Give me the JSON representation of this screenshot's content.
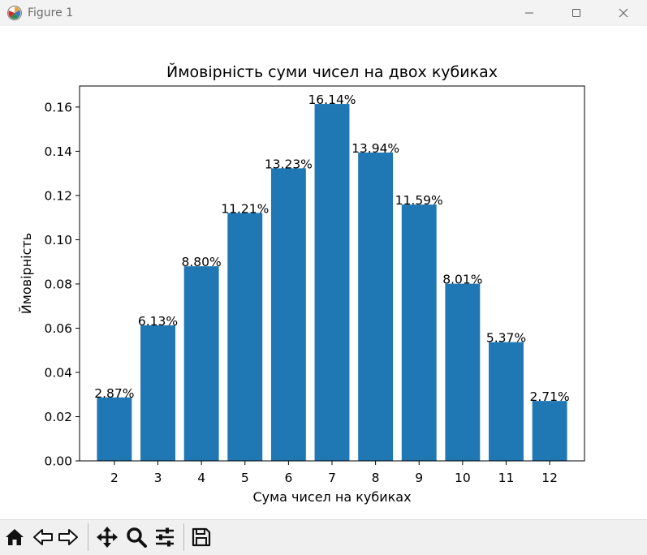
{
  "window": {
    "title": "Figure 1",
    "controls": [
      "minimize",
      "maximize",
      "close"
    ]
  },
  "toolbar": {
    "tools": [
      {
        "id": "home",
        "icon": "home-icon"
      },
      {
        "id": "back",
        "icon": "back-arrow-icon"
      },
      {
        "id": "forward",
        "icon": "forward-arrow-icon"
      },
      {
        "id": "pan",
        "icon": "move-icon"
      },
      {
        "id": "zoom",
        "icon": "zoom-icon"
      },
      {
        "id": "configure",
        "icon": "sliders-icon"
      },
      {
        "id": "save",
        "icon": "save-icon"
      }
    ]
  },
  "colors": {
    "bar": "#1f77b4",
    "titlebar": "#f3f3f3",
    "toolbar": "#f0f0f0"
  },
  "chart_data": {
    "type": "bar",
    "title": "Ймовірність суми чисел на двох кубиках",
    "xlabel": "Сума чисел на кубиках",
    "ylabel": "Ймовірність",
    "categories": [
      "2",
      "3",
      "4",
      "5",
      "6",
      "7",
      "8",
      "9",
      "10",
      "11",
      "12"
    ],
    "values": [
      0.0287,
      0.0613,
      0.088,
      0.1121,
      0.1323,
      0.1614,
      0.1394,
      0.1159,
      0.0801,
      0.0537,
      0.0271
    ],
    "data_labels": [
      "2.87%",
      "6.13%",
      "8.80%",
      "11.21%",
      "13.23%",
      "16.14%",
      "13.94%",
      "11.59%",
      "8.01%",
      "5.37%",
      "2.71%"
    ],
    "yticks": [
      0,
      0.02,
      0.04,
      0.06,
      0.08,
      0.1,
      0.12,
      0.14,
      0.16
    ],
    "ytick_labels": [
      "0.00",
      "0.02",
      "0.04",
      "0.06",
      "0.08",
      "0.10",
      "0.12",
      "0.14",
      "0.16"
    ],
    "ylim": [
      0,
      0.1695
    ],
    "grid": false,
    "legend": false
  }
}
